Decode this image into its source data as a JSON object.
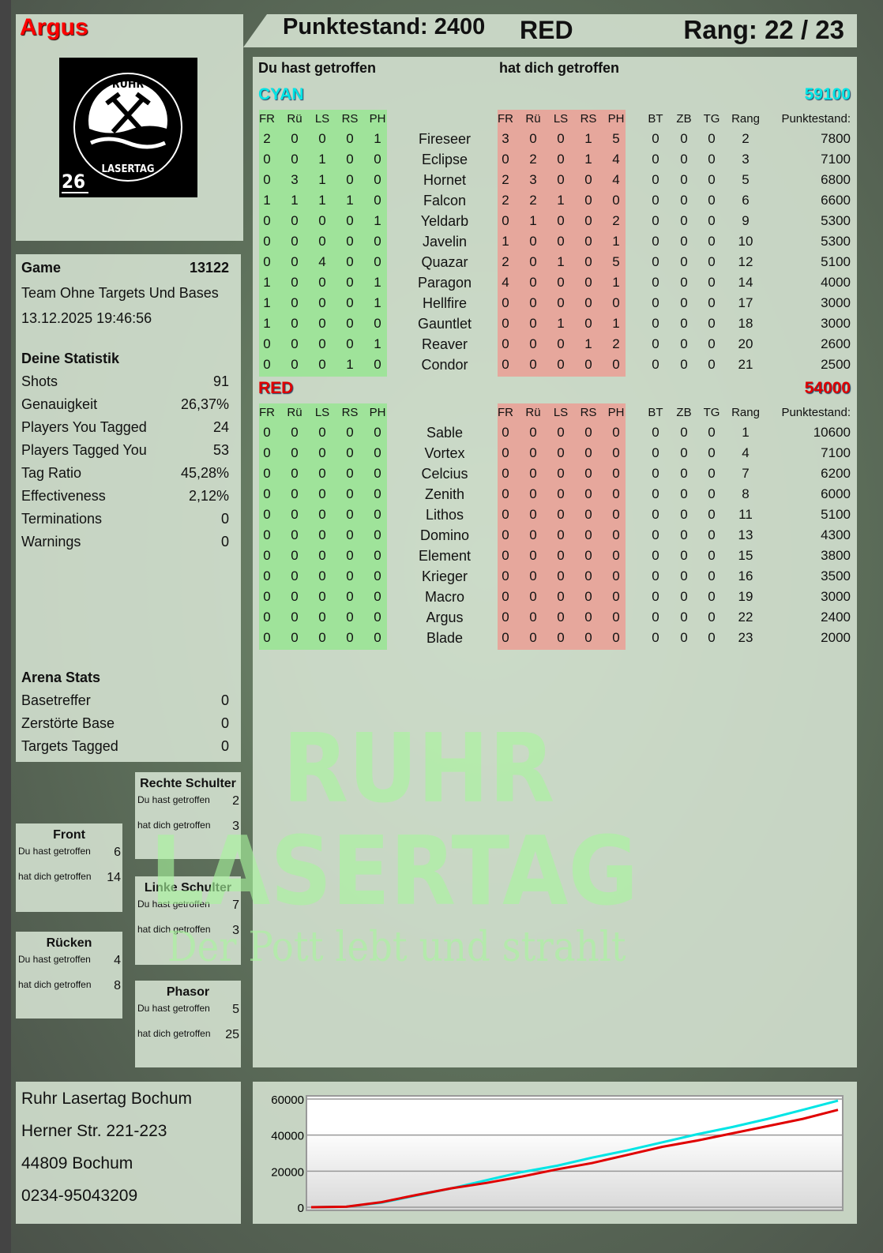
{
  "player": {
    "name": "Argus",
    "logo_text": "RUHR LASERTAG",
    "logo_number": "26"
  },
  "header": {
    "score": "Punktestand: 2400",
    "team": "RED",
    "rank": "Rang: 22 / 23"
  },
  "watermark": {
    "line1": "RUHR",
    "line2": "LASERTAG",
    "tagline": "Der Pott lebt und strahlt"
  },
  "colors": {
    "cyan": "#00e5e5",
    "red": "#e00000",
    "green_band": "#9fe39a",
    "red_band": "#e6a79c"
  },
  "game": {
    "label": "Game",
    "id": "13122",
    "mode": "Team Ohne Targets Und Bases",
    "datetime": "13.12.2025 19:46:56"
  },
  "stats": {
    "title": "Deine Statistik",
    "items": [
      {
        "label": "Shots",
        "value": "91"
      },
      {
        "label": "Genauigkeit",
        "value": "26,37%"
      },
      {
        "label": "Players You Tagged",
        "value": "24"
      },
      {
        "label": "Players Tagged You",
        "value": "53"
      },
      {
        "label": "Tag Ratio",
        "value": "45,28%"
      },
      {
        "label": "Effectiveness",
        "value": "2,12%"
      },
      {
        "label": "Terminations",
        "value": "0"
      },
      {
        "label": "Warnings",
        "value": "0"
      }
    ]
  },
  "arena": {
    "title": "Arena Stats",
    "items": [
      {
        "label": "Basetreffer",
        "value": "0"
      },
      {
        "label": "Zerstörte Base",
        "value": "0"
      },
      {
        "label": "Targets Tagged",
        "value": "0"
      }
    ]
  },
  "hit_zones": [
    {
      "title": "Rechte Schulter",
      "you_hit_label": "Du hast getroffen",
      "you_hit": "2",
      "hit_you_label": "hat dich getroffen",
      "hit_you": "3"
    },
    {
      "title": "Front",
      "you_hit_label": "Du hast getroffen",
      "you_hit": "6",
      "hit_you_label": "hat dich getroffen",
      "hit_you": "14"
    },
    {
      "title": "Linke Schulter",
      "you_hit_label": "Du hast getroffen",
      "you_hit": "7",
      "hit_you_label": "hat dich getroffen",
      "hit_you": "3"
    },
    {
      "title": "Rücken",
      "you_hit_label": "Du hast getroffen",
      "you_hit": "4",
      "hit_you_label": "hat dich getroffen",
      "hit_you": "8"
    },
    {
      "title": "Phasor",
      "you_hit_label": "Du hast getroffen",
      "you_hit": "5",
      "hit_you_label": "hat dich getroffen",
      "hit_you": "25"
    }
  ],
  "address": [
    "Ruhr Lasertag Bochum",
    "Herner Str. 221-223",
    "44809 Bochum",
    "0234-95043209"
  ],
  "table": {
    "you_hit": "Du hast getroffen",
    "hit_you": "hat dich getroffen",
    "hit_cols": [
      "FR",
      "Rü",
      "LS",
      "RS",
      "PH"
    ],
    "extra_cols": [
      "BT",
      "ZB",
      "TG",
      "Rang",
      "Punktestand:"
    ],
    "teams": [
      {
        "name": "CYAN",
        "total": "59100",
        "color": "#00e5e5",
        "players": [
          {
            "name": "Fireseer",
            "you": [
              2,
              0,
              0,
              0,
              1
            ],
            "them": [
              3,
              0,
              0,
              1,
              5
            ],
            "extra": [
              0,
              0,
              0,
              2
            ],
            "score": 7800
          },
          {
            "name": "Eclipse",
            "you": [
              0,
              0,
              1,
              0,
              0
            ],
            "them": [
              0,
              2,
              0,
              1,
              4
            ],
            "extra": [
              0,
              0,
              0,
              3
            ],
            "score": 7100
          },
          {
            "name": "Hornet",
            "you": [
              0,
              3,
              1,
              0,
              0
            ],
            "them": [
              2,
              3,
              0,
              0,
              4
            ],
            "extra": [
              0,
              0,
              0,
              5
            ],
            "score": 6800
          },
          {
            "name": "Falcon",
            "you": [
              1,
              1,
              1,
              1,
              0
            ],
            "them": [
              2,
              2,
              1,
              0,
              0
            ],
            "extra": [
              0,
              0,
              0,
              6
            ],
            "score": 6600
          },
          {
            "name": "Yeldarb",
            "you": [
              0,
              0,
              0,
              0,
              1
            ],
            "them": [
              0,
              1,
              0,
              0,
              2
            ],
            "extra": [
              0,
              0,
              0,
              9
            ],
            "score": 5300
          },
          {
            "name": "Javelin",
            "you": [
              0,
              0,
              0,
              0,
              0
            ],
            "them": [
              1,
              0,
              0,
              0,
              1
            ],
            "extra": [
              0,
              0,
              0,
              10
            ],
            "score": 5300
          },
          {
            "name": "Quazar",
            "you": [
              0,
              0,
              4,
              0,
              0
            ],
            "them": [
              2,
              0,
              1,
              0,
              5
            ],
            "extra": [
              0,
              0,
              0,
              12
            ],
            "score": 5100
          },
          {
            "name": "Paragon",
            "you": [
              1,
              0,
              0,
              0,
              1
            ],
            "them": [
              4,
              0,
              0,
              0,
              1
            ],
            "extra": [
              0,
              0,
              0,
              14
            ],
            "score": 4000
          },
          {
            "name": "Hellfire",
            "you": [
              1,
              0,
              0,
              0,
              1
            ],
            "them": [
              0,
              0,
              0,
              0,
              0
            ],
            "extra": [
              0,
              0,
              0,
              17
            ],
            "score": 3000
          },
          {
            "name": "Gauntlet",
            "you": [
              1,
              0,
              0,
              0,
              0
            ],
            "them": [
              0,
              0,
              1,
              0,
              1
            ],
            "extra": [
              0,
              0,
              0,
              18
            ],
            "score": 3000
          },
          {
            "name": "Reaver",
            "you": [
              0,
              0,
              0,
              0,
              1
            ],
            "them": [
              0,
              0,
              0,
              1,
              2
            ],
            "extra": [
              0,
              0,
              0,
              20
            ],
            "score": 2600
          },
          {
            "name": "Condor",
            "you": [
              0,
              0,
              0,
              1,
              0
            ],
            "them": [
              0,
              0,
              0,
              0,
              0
            ],
            "extra": [
              0,
              0,
              0,
              21
            ],
            "score": 2500
          }
        ]
      },
      {
        "name": "RED",
        "total": "54000",
        "color": "#e00000",
        "players": [
          {
            "name": "Sable",
            "you": [
              0,
              0,
              0,
              0,
              0
            ],
            "them": [
              0,
              0,
              0,
              0,
              0
            ],
            "extra": [
              0,
              0,
              0,
              1
            ],
            "score": 10600
          },
          {
            "name": "Vortex",
            "you": [
              0,
              0,
              0,
              0,
              0
            ],
            "them": [
              0,
              0,
              0,
              0,
              0
            ],
            "extra": [
              0,
              0,
              0,
              4
            ],
            "score": 7100
          },
          {
            "name": "Celcius",
            "you": [
              0,
              0,
              0,
              0,
              0
            ],
            "them": [
              0,
              0,
              0,
              0,
              0
            ],
            "extra": [
              0,
              0,
              0,
              7
            ],
            "score": 6200
          },
          {
            "name": "Zenith",
            "you": [
              0,
              0,
              0,
              0,
              0
            ],
            "them": [
              0,
              0,
              0,
              0,
              0
            ],
            "extra": [
              0,
              0,
              0,
              8
            ],
            "score": 6000
          },
          {
            "name": "Lithos",
            "you": [
              0,
              0,
              0,
              0,
              0
            ],
            "them": [
              0,
              0,
              0,
              0,
              0
            ],
            "extra": [
              0,
              0,
              0,
              11
            ],
            "score": 5100
          },
          {
            "name": "Domino",
            "you": [
              0,
              0,
              0,
              0,
              0
            ],
            "them": [
              0,
              0,
              0,
              0,
              0
            ],
            "extra": [
              0,
              0,
              0,
              13
            ],
            "score": 4300
          },
          {
            "name": "Element",
            "you": [
              0,
              0,
              0,
              0,
              0
            ],
            "them": [
              0,
              0,
              0,
              0,
              0
            ],
            "extra": [
              0,
              0,
              0,
              15
            ],
            "score": 3800
          },
          {
            "name": "Krieger",
            "you": [
              0,
              0,
              0,
              0,
              0
            ],
            "them": [
              0,
              0,
              0,
              0,
              0
            ],
            "extra": [
              0,
              0,
              0,
              16
            ],
            "score": 3500
          },
          {
            "name": "Macro",
            "you": [
              0,
              0,
              0,
              0,
              0
            ],
            "them": [
              0,
              0,
              0,
              0,
              0
            ],
            "extra": [
              0,
              0,
              0,
              19
            ],
            "score": 3000
          },
          {
            "name": "Argus",
            "you": [
              0,
              0,
              0,
              0,
              0
            ],
            "them": [
              0,
              0,
              0,
              0,
              0
            ],
            "extra": [
              0,
              0,
              0,
              22
            ],
            "score": 2400
          },
          {
            "name": "Blade",
            "you": [
              0,
              0,
              0,
              0,
              0
            ],
            "them": [
              0,
              0,
              0,
              0,
              0
            ],
            "extra": [
              0,
              0,
              0,
              23
            ],
            "score": 2000
          }
        ]
      }
    ]
  },
  "chart_data": {
    "type": "line",
    "title": "",
    "xlabel": "",
    "ylabel": "",
    "ylim": [
      0,
      60000
    ],
    "yticks": [
      "0",
      "20000",
      "40000",
      "60000"
    ],
    "grid": true,
    "series": [
      {
        "color": "#00e5e5",
        "values": [
          0,
          300,
          2500,
          6500,
          10500,
          15000,
          19500,
          23000,
          27500,
          31500,
          36000,
          40500,
          44500,
          49000,
          54000,
          59100
        ]
      },
      {
        "color": "#e00000",
        "values": [
          0,
          300,
          2800,
          6800,
          10500,
          13500,
          17000,
          21000,
          24500,
          29000,
          33500,
          37000,
          41000,
          45000,
          49000,
          54000
        ]
      }
    ]
  }
}
